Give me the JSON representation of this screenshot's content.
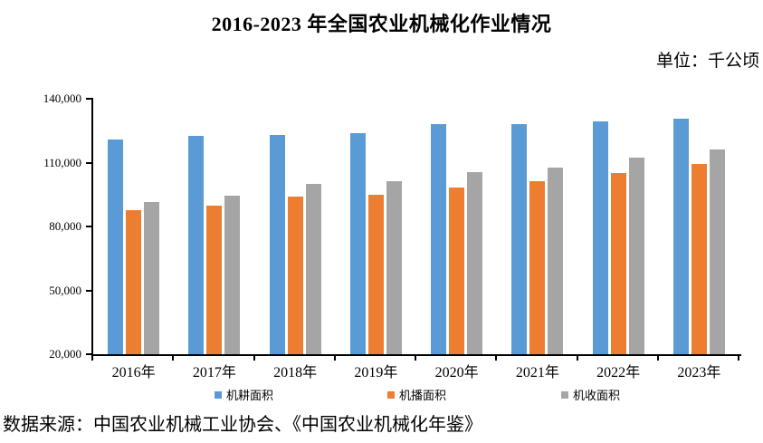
{
  "title": "2016-2023 年全国农业机械化作业情况",
  "unit_label": "单位：千公顷",
  "source": "数据来源：中国农业机械工业协会、《中国农业机械化年鉴》",
  "chart_data": {
    "type": "bar",
    "title": "2016-2023 年全国农业机械化作业情况",
    "unit": "千公顷",
    "categories": [
      "2016年",
      "2017年",
      "2018年",
      "2019年",
      "2020年",
      "2021年",
      "2022年",
      "2023年"
    ],
    "series": [
      {
        "name": "机耕面积",
        "color": "#5B9BD5",
        "values": [
          121000,
          122500,
          122900,
          124000,
          128100,
          128300,
          129400,
          130700
        ]
      },
      {
        "name": "机播面积",
        "color": "#ED7D31",
        "values": [
          87600,
          90000,
          94100,
          94800,
          98400,
          101500,
          105200,
          109300
        ]
      },
      {
        "name": "机收面积",
        "color": "#A5A5A5",
        "values": [
          91600,
          94400,
          100200,
          101100,
          105400,
          107800,
          112200,
          116100
        ]
      }
    ],
    "ylim": [
      20000,
      140000
    ],
    "ytick_interval": 30000,
    "ytick_labels_top_to_bottom": [
      "140,000",
      "110,000",
      "80,000",
      "50,000",
      "20,000"
    ],
    "grid": false,
    "legend_position": "bottom",
    "axis_color": "#000000"
  }
}
